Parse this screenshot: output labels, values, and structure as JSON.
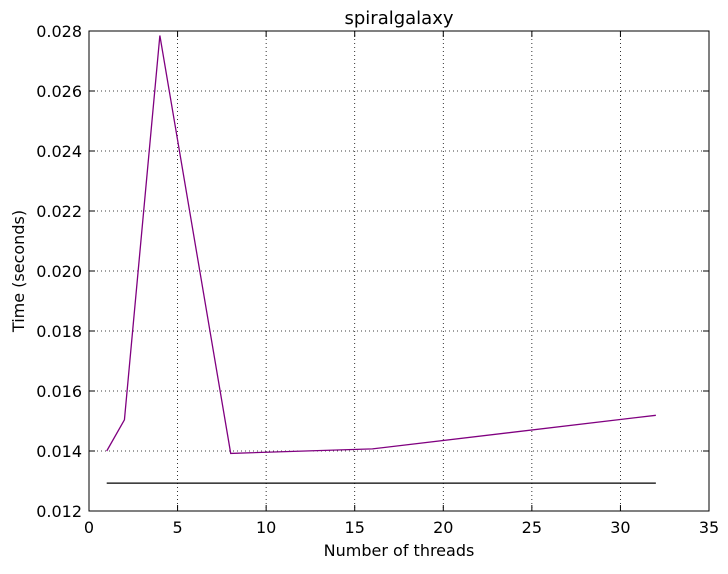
{
  "chart_data": {
    "type": "line",
    "title": "spiralgalaxy",
    "xlabel": "Number of threads",
    "ylabel": "Time (seconds)",
    "xlim": [
      0,
      35
    ],
    "ylim": [
      0.012,
      0.028
    ],
    "xticks": [
      0,
      5,
      10,
      15,
      20,
      25,
      30,
      35
    ],
    "yticks": [
      0.012,
      0.014,
      0.016,
      0.018,
      0.02,
      0.022,
      0.024,
      0.026,
      0.028
    ],
    "xtick_labels": [
      "0",
      "5",
      "10",
      "15",
      "20",
      "25",
      "30",
      "35"
    ],
    "ytick_labels": [
      "0.012",
      "0.014",
      "0.016",
      "0.018",
      "0.020",
      "0.022",
      "0.024",
      "0.026",
      "0.028"
    ],
    "grid": true,
    "legend": "none",
    "series": [
      {
        "color": "#800080",
        "x": [
          1,
          2,
          4,
          8,
          16,
          32
        ],
        "y": [
          0.014,
          0.01504,
          0.02785,
          0.01392,
          0.01407,
          0.01519
        ]
      },
      {
        "color": "#000000",
        "x": [
          1,
          32
        ],
        "y": [
          0.01293,
          0.01293
        ]
      }
    ]
  }
}
